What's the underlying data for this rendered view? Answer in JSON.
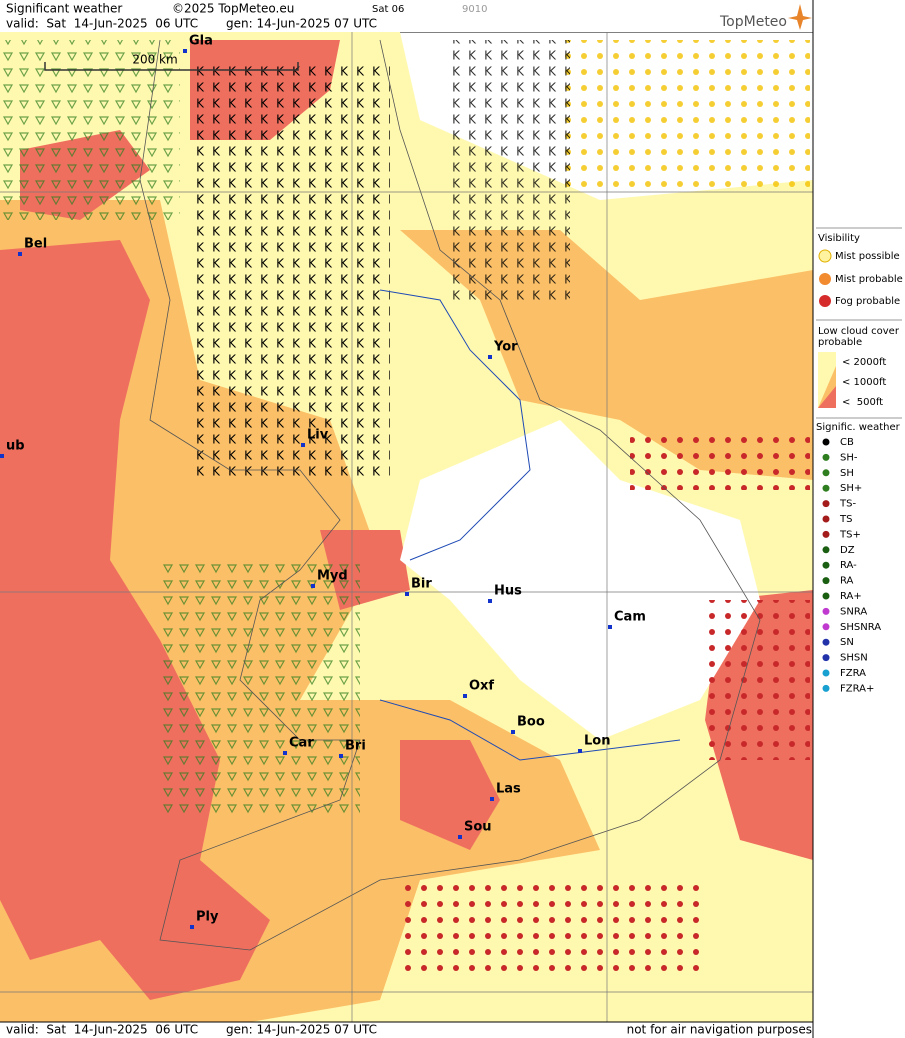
{
  "header": {
    "title": "Significant weather",
    "copyright": "©2025 TopMeteo.eu",
    "run": "Sat 06",
    "code": "9010",
    "valid": "valid:  Sat  14-Jun-2025  06 UTC",
    "gen": "gen: 14-Jun-2025 07 UTC",
    "brand": "TopMeteo"
  },
  "scale": "200 km",
  "cities": [
    "Gla",
    "Bel",
    "Yor",
    "Liv",
    "ub",
    "Myd",
    "Bir",
    "Hus",
    "Cam",
    "Oxf",
    "Boo",
    "Car",
    "Bri",
    "Lon",
    "Las",
    "Sou",
    "Ply"
  ],
  "legend": {
    "visibility": {
      "title": "Visibility",
      "items": [
        "Mist possible",
        "Mist probable",
        "Fog probable"
      ]
    },
    "low_cloud": {
      "title": "Low cloud cover probable",
      "items": [
        "< 2000ft",
        "< 1000ft",
        "<  500ft"
      ]
    },
    "weather": {
      "title": "Signific. weather",
      "items": [
        "CB",
        "SH-",
        "SH",
        "SH+",
        "TS-",
        "TS",
        "TS+",
        "DZ",
        "RA-",
        "RA",
        "RA+",
        "SNRA",
        "SHSNRA",
        "SN",
        "SHSN",
        "FZRA",
        "FZRA+"
      ]
    }
  },
  "footer": {
    "valid": "valid:  Sat  14-Jun-2025  06 UTC",
    "gen": "gen: 14-Jun-2025 07 UTC",
    "note": "not for air navigation purposes"
  }
}
